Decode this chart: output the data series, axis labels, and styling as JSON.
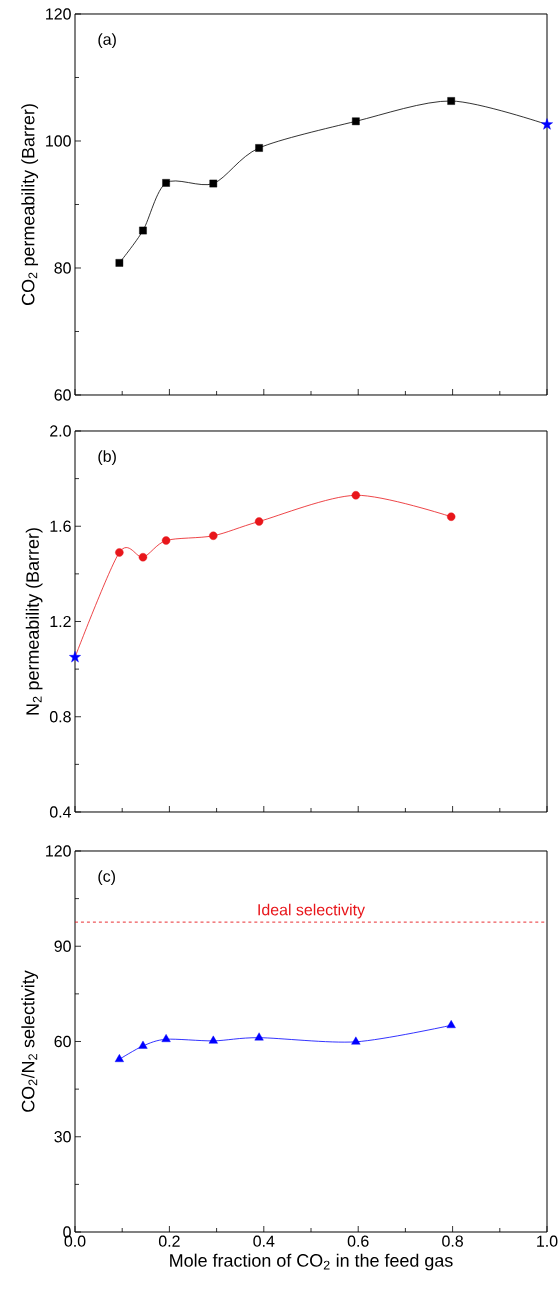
{
  "chart_data": [
    {
      "type": "scatter",
      "ylabel": "CO$_{2}$ permeability (Barrer)",
      "annotations": [
        "(a)"
      ],
      "xlim": [
        0,
        1
      ],
      "xticks": [
        0,
        0.2,
        0.4,
        0.6,
        0.8,
        1
      ],
      "ylim": [
        60,
        120
      ],
      "yticks": [
        60,
        80,
        100,
        120
      ],
      "tick_labels": "y",
      "series": [
        {
          "type": "line",
          "color": "#000000",
          "marker": "none",
          "x": [
            0.094,
            0.144,
            0.193,
            0.293,
            0.39,
            0.595,
            0.797,
            1.0
          ],
          "values": [
            80.8,
            85.9,
            93.4,
            93.3,
            98.9,
            103.1,
            106.3,
            102.6
          ]
        },
        {
          "color": "#000000",
          "marker": "square",
          "x": [
            0.094,
            0.144,
            0.193,
            0.293,
            0.39,
            0.595,
            0.797
          ],
          "values": [
            80.8,
            85.9,
            93.4,
            93.3,
            98.9,
            103.1,
            106.3
          ]
        },
        {
          "color": "#0000ff",
          "marker": "star",
          "x": [
            1.0
          ],
          "values": [
            102.6
          ]
        }
      ]
    },
    {
      "type": "scatter",
      "ylabel": "N$_{2}$ permeability (Barrer)",
      "annotations": [
        "(b)"
      ],
      "xlim": [
        0,
        1
      ],
      "xticks": [
        0,
        0.2,
        0.4,
        0.6,
        0.8,
        1
      ],
      "ylim": [
        0.4,
        2.0
      ],
      "yticks": [
        0.4,
        0.8,
        1.2,
        1.6,
        {
          "value": 2.0,
          "label": "2.0"
        }
      ],
      "tick_labels": "y",
      "series": [
        {
          "type": "line",
          "color": "#e8161b",
          "marker": "none",
          "x": [
            0.0,
            0.094,
            0.144,
            0.193,
            0.293,
            0.39,
            0.595,
            0.797
          ],
          "values": [
            1.05,
            1.49,
            1.47,
            1.54,
            1.56,
            1.62,
            1.73,
            1.64
          ]
        },
        {
          "color": "#e8161b",
          "marker": "circle",
          "x": [
            0.094,
            0.144,
            0.193,
            0.293,
            0.39,
            0.595,
            0.797
          ],
          "values": [
            1.49,
            1.47,
            1.54,
            1.56,
            1.62,
            1.73,
            1.64
          ]
        },
        {
          "color": "#0000ff",
          "marker": "star",
          "x": [
            0.0
          ],
          "values": [
            1.05
          ]
        }
      ]
    },
    {
      "type": "scatter",
      "xlabel": "Mole fraction of CO$_{2}$ in the feed gas",
      "ylabel": "CO$_{2}$/N$_{2}$ selectivity",
      "annotations": [
        "(c)"
      ],
      "xlim": [
        0,
        1
      ],
      "xticks": [
        {
          "value": 0,
          "label": "0.0"
        },
        0.2,
        0.4,
        0.6,
        0.8,
        {
          "value": 1,
          "label": "1.0"
        }
      ],
      "ylim": [
        0,
        120
      ],
      "yticks": [
        0,
        30,
        60,
        90,
        120
      ],
      "ref_lines": [
        {
          "axis": "y",
          "value": 97.6,
          "label": "Ideal selectivity",
          "color": "#e8161b",
          "line_style": "dashed"
        }
      ],
      "series": [
        {
          "type": "line",
          "color": "#0000ff",
          "marker": "none",
          "x": [
            0.094,
            0.144,
            0.193,
            0.293,
            0.39,
            0.595,
            0.797
          ],
          "values": [
            54.4,
            58.6,
            60.7,
            60.2,
            61.2,
            59.9,
            65.1
          ]
        },
        {
          "color": "#0000ff",
          "marker": "triangle",
          "x": [
            0.094,
            0.144,
            0.193,
            0.293,
            0.39,
            0.595,
            0.797
          ],
          "values": [
            54.4,
            58.6,
            60.7,
            60.2,
            61.2,
            59.9,
            65.1
          ]
        }
      ]
    }
  ]
}
